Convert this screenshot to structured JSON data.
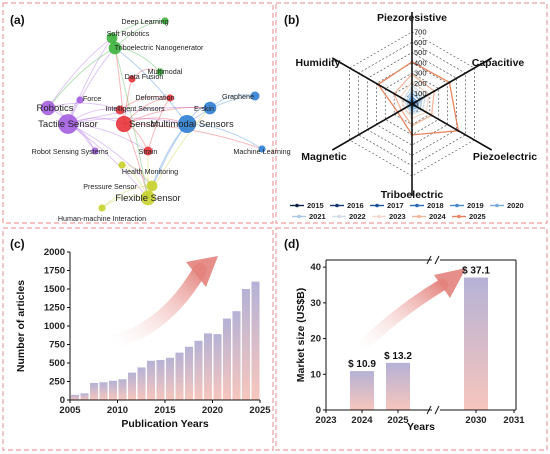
{
  "panel_labels": [
    "(a)",
    "(b)",
    "(c)",
    "(d)"
  ],
  "colors": {
    "border": "#e9a0a0",
    "bar_top": "#b5b2d6",
    "bar_bottom": "#f7c6bd",
    "arrow": "#e3827c",
    "cluster_purple": "#a45ee0",
    "cluster_red": "#e8343b",
    "cluster_blue": "#2e7fd3",
    "cluster_green": "#3bb23c",
    "cluster_yellow": "#c7d12a"
  },
  "network": {
    "nodes": [
      {
        "id": "deep-learning",
        "label": "Deep Learning",
        "cluster": "green",
        "size": 4
      },
      {
        "id": "soft-robotics",
        "label": "Soft Robotics",
        "cluster": "green",
        "size": 6
      },
      {
        "id": "teng",
        "label": "Triboelectric Nanogenerator",
        "cluster": "green",
        "size": 7
      },
      {
        "id": "multimodal",
        "label": "Multimodal",
        "cluster": "green",
        "size": 4
      },
      {
        "id": "data-fusion",
        "label": "Data Fusion",
        "cluster": "red",
        "size": 4
      },
      {
        "id": "graphene",
        "label": "Graphene",
        "cluster": "blue",
        "size": 5
      },
      {
        "id": "force",
        "label": "Force",
        "cluster": "purple",
        "size": 4
      },
      {
        "id": "deformation",
        "label": "Deformation",
        "cluster": "red",
        "size": 4
      },
      {
        "id": "intelligent-sensors",
        "label": "Intelligent Sensors",
        "cluster": "red",
        "size": 5
      },
      {
        "id": "e-skin",
        "label": "E-skin",
        "cluster": "blue",
        "size": 7
      },
      {
        "id": "robotics",
        "label": "Robotics",
        "cluster": "purple",
        "size": 8
      },
      {
        "id": "tactile-sensor",
        "label": "Tactile Sensor",
        "cluster": "purple",
        "size": 11
      },
      {
        "id": "sensor",
        "label": "Sensor",
        "cluster": "red",
        "size": 9
      },
      {
        "id": "multimodal-sensors",
        "label": "Multimodal Sensors",
        "cluster": "blue",
        "size": 10
      },
      {
        "id": "robot-sensing-systems",
        "label": "Robot Sensing Systems",
        "cluster": "purple",
        "size": 4
      },
      {
        "id": "strain",
        "label": "Strain",
        "cluster": "red",
        "size": 5
      },
      {
        "id": "machine-learning",
        "label": "Machine Learning",
        "cluster": "blue",
        "size": 4
      },
      {
        "id": "health-monitoring",
        "label": "Health Monitoring",
        "cluster": "yellow",
        "size": 4
      },
      {
        "id": "pressure-sensor",
        "label": "Pressure Sensor",
        "cluster": "yellow",
        "size": 6
      },
      {
        "id": "flexible-sensor",
        "label": "Flexible Sensor",
        "cluster": "yellow",
        "size": 8
      },
      {
        "id": "hmi",
        "label": "Human-machine Interaction",
        "cluster": "yellow",
        "size": 4
      }
    ]
  },
  "chart_data": [
    {
      "type": "radar",
      "axes": [
        "Piezoresistive",
        "Capacitive",
        "Piezoelectric",
        "Triboelectric",
        "Magnetic",
        "Humidity"
      ],
      "rlim": [
        0,
        700
      ],
      "rticks": [
        0,
        100,
        200,
        300,
        400,
        500,
        600,
        700
      ],
      "series": [
        {
          "name": "2015",
          "color": "#0d2346",
          "values": [
            8,
            6,
            4,
            3,
            2,
            2
          ]
        },
        {
          "name": "2016",
          "color": "#15396e",
          "values": [
            12,
            10,
            8,
            6,
            4,
            4
          ]
        },
        {
          "name": "2017",
          "color": "#1f5196",
          "values": [
            25,
            18,
            14,
            12,
            6,
            8
          ]
        },
        {
          "name": "2018",
          "color": "#2d68b0",
          "values": [
            45,
            35,
            25,
            22,
            12,
            15
          ]
        },
        {
          "name": "2019",
          "color": "#4a86c5",
          "values": [
            70,
            55,
            40,
            35,
            20,
            25
          ]
        },
        {
          "name": "2020",
          "color": "#79abd8",
          "values": [
            105,
            85,
            65,
            55,
            30,
            40
          ]
        },
        {
          "name": "2021",
          "color": "#a8c9e6",
          "values": [
            140,
            115,
            90,
            80,
            45,
            60
          ]
        },
        {
          "name": "2022",
          "color": "#d3dde8",
          "values": [
            180,
            150,
            120,
            100,
            60,
            90
          ]
        },
        {
          "name": "2023",
          "color": "#f4d8cb",
          "values": [
            220,
            190,
            160,
            140,
            80,
            130
          ]
        },
        {
          "name": "2024",
          "color": "#f1b69c",
          "values": [
            290,
            250,
            220,
            210,
            120,
            200
          ]
        },
        {
          "name": "2025",
          "color": "#e98460",
          "values": [
            410,
            420,
            520,
            300,
            160,
            380
          ]
        }
      ],
      "legend": [
        "2015",
        "2016",
        "2017",
        "2018",
        "2019",
        "2020",
        "2021",
        "2022",
        "2023",
        "2024",
        "2025"
      ]
    },
    {
      "type": "bar",
      "x": [
        2006,
        2007,
        2008,
        2009,
        2010,
        2011,
        2012,
        2013,
        2014,
        2015,
        2016,
        2017,
        2018,
        2019,
        2020,
        2021,
        2022,
        2023,
        2024,
        2025
      ],
      "values": [
        70,
        90,
        230,
        240,
        260,
        280,
        370,
        440,
        530,
        540,
        570,
        640,
        720,
        800,
        900,
        890,
        1100,
        1200,
        1500,
        1600
      ],
      "xlabel": "Publication Years",
      "ylabel": "Number of articles",
      "xlim": [
        2005,
        2025
      ],
      "xticks": [
        2005,
        2010,
        2015,
        2020,
        2025
      ],
      "ylim": [
        0,
        2000
      ],
      "yticks": [
        0,
        250,
        500,
        750,
        1000,
        1250,
        1500,
        1750,
        2000
      ]
    },
    {
      "type": "bar",
      "categories": [
        "2024",
        "2025",
        "2030"
      ],
      "values": [
        10.9,
        13.2,
        37.1
      ],
      "data_labels": [
        "$ 10.9",
        "$ 13.2",
        "$ 37.1"
      ],
      "xlabel": "Years",
      "ylabel": "Market size (US$B)",
      "xticks": [
        "2023",
        "2024",
        "2025",
        "2030",
        "2031"
      ],
      "ylim": [
        0,
        42
      ],
      "yticks": [
        0,
        10,
        20,
        30,
        40
      ]
    }
  ]
}
